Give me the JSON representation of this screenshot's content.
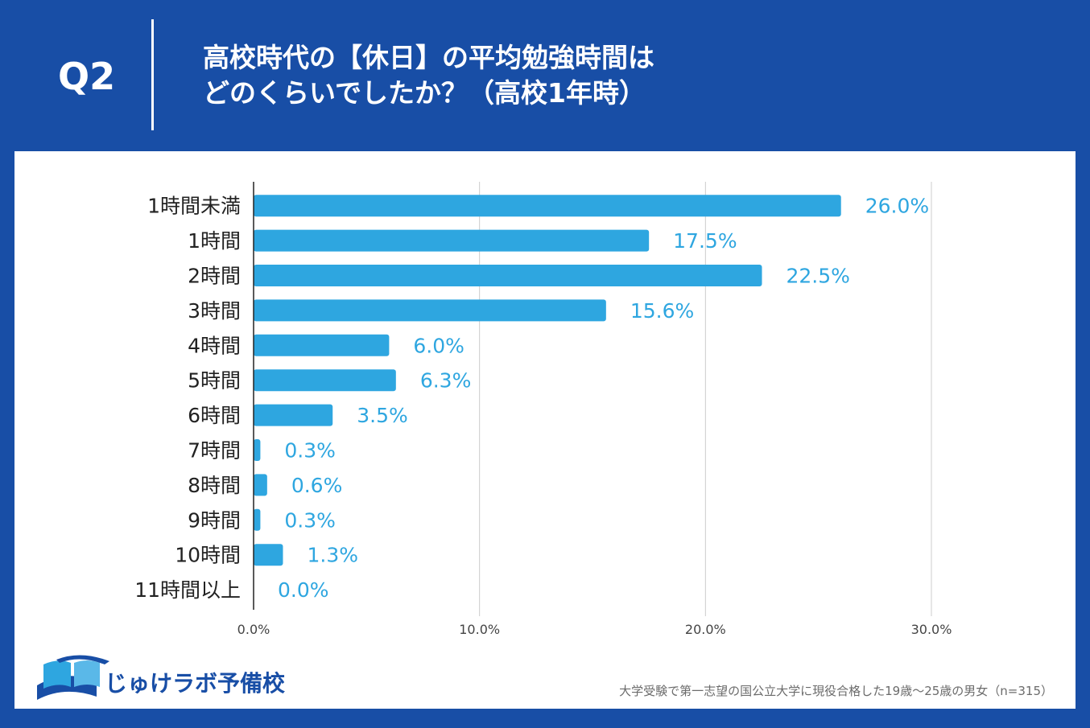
{
  "header": {
    "question_number": "Q2",
    "title_line1": "高校時代の【休日】の平均勉強時間は",
    "title_line2": "どのくらいでしたか？（高校1年時）"
  },
  "chart_data": {
    "type": "bar",
    "orientation": "horizontal",
    "title": "高校時代の【休日】の平均勉強時間はどのくらいでしたか？（高校1年時）",
    "categories": [
      "1時間未満",
      "1時間",
      "2時間",
      "3時間",
      "4時間",
      "5時間",
      "6時間",
      "7時間",
      "8時間",
      "9時間",
      "10時間",
      "11時間以上"
    ],
    "values": [
      26.0,
      17.5,
      22.5,
      15.6,
      6.0,
      6.3,
      3.5,
      0.3,
      0.6,
      0.3,
      1.3,
      0.0
    ],
    "value_labels": [
      "26.0%",
      "17.5%",
      "22.5%",
      "15.6%",
      "6.0%",
      "6.3%",
      "3.5%",
      "0.3%",
      "0.6%",
      "0.3%",
      "1.3%",
      "0.0%"
    ],
    "xticks": [
      0,
      10,
      20,
      30
    ],
    "xtick_labels": [
      "0.0%",
      "10.0%",
      "20.0%",
      "30.0%"
    ],
    "xlim": [
      0,
      30
    ],
    "grid": true,
    "bar_color": "#2ea6e0",
    "label_color": "#2ea6e0"
  },
  "branding": {
    "logo_text": "じゅけラボ予備校",
    "logo_color": "#184ea6"
  },
  "footnote": "大学受験で第一志望の国公立大学に現役合格した19歳～25歳の男女（n=315）",
  "colors": {
    "background": "#184ea6",
    "panel": "#ffffff",
    "axis_text": "#222222",
    "grid": "#cccccc"
  }
}
